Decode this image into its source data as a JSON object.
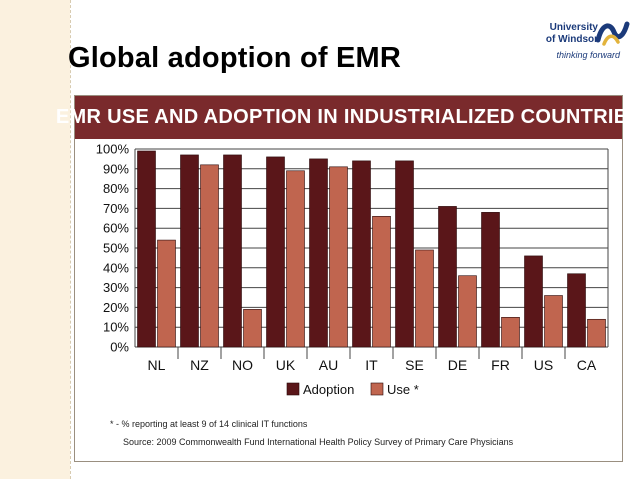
{
  "slide": {
    "title": "Global adoption of EMR",
    "logo": {
      "line1": "University",
      "line2": "of Windsor",
      "tagline": "thinking forward"
    }
  },
  "colors": {
    "adoption": "#5a1619",
    "use": "#c0654f",
    "header_bg": "#7a2a2c"
  },
  "chart_data": {
    "type": "bar",
    "title": "EMR USE AND ADOPTION IN INDUSTRIALIZED COUNTRIES",
    "categories": [
      "NL",
      "NZ",
      "NO",
      "UK",
      "AU",
      "IT",
      "SE",
      "DE",
      "FR",
      "US",
      "CA"
    ],
    "series": [
      {
        "name": "Adoption",
        "values": [
          99,
          97,
          97,
          96,
          95,
          94,
          94,
          71,
          68,
          46,
          37
        ]
      },
      {
        "name": "Use *",
        "values": [
          54,
          92,
          19,
          89,
          91,
          66,
          49,
          36,
          15,
          26,
          14
        ]
      }
    ],
    "yticks": [
      "0%",
      "10%",
      "20%",
      "30%",
      "40%",
      "50%",
      "60%",
      "70%",
      "80%",
      "90%",
      "100%"
    ],
    "ylim": [
      0,
      100
    ],
    "xlabel": "",
    "ylabel": "",
    "legend_position": "bottom-center",
    "footnote": "* - % reporting at least 9 of 14 clinical IT functions",
    "source": "Source: 2009 Commonwealth Fund International Health Policy Survey of Primary Care Physicians"
  }
}
